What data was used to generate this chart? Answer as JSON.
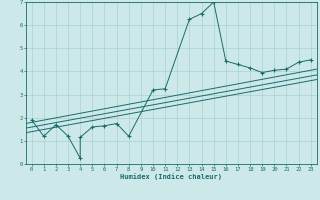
{
  "xlabel": "Humidex (Indice chaleur)",
  "bg_color": "#cce8e8",
  "line_color": "#1a6b6b",
  "grid_color": "#aad0d0",
  "xlim": [
    -0.5,
    23.5
  ],
  "ylim": [
    0,
    7
  ],
  "xticks": [
    0,
    1,
    2,
    3,
    4,
    5,
    6,
    7,
    8,
    9,
    10,
    11,
    12,
    13,
    14,
    15,
    16,
    17,
    18,
    19,
    20,
    21,
    22,
    23
  ],
  "yticks": [
    0,
    1,
    2,
    3,
    4,
    5,
    6,
    7
  ],
  "data_x": [
    0,
    1,
    2,
    3,
    4,
    4,
    5,
    6,
    7,
    8,
    10,
    11,
    13,
    14,
    15,
    16,
    17,
    18,
    19,
    20,
    21,
    22,
    23
  ],
  "data_y": [
    1.9,
    1.2,
    1.7,
    1.2,
    0.25,
    1.15,
    1.6,
    1.65,
    1.75,
    1.2,
    3.2,
    3.25,
    6.25,
    6.5,
    7.0,
    4.45,
    4.3,
    4.15,
    3.95,
    4.05,
    4.1,
    4.4,
    4.5
  ],
  "line1_x": [
    -0.5,
    23.5
  ],
  "line1_y": [
    1.55,
    3.85
  ],
  "line2_x": [
    -0.5,
    23.5
  ],
  "line2_y": [
    1.75,
    4.1
  ],
  "line3_x": [
    -0.5,
    23.5
  ],
  "line3_y": [
    1.35,
    3.65
  ]
}
